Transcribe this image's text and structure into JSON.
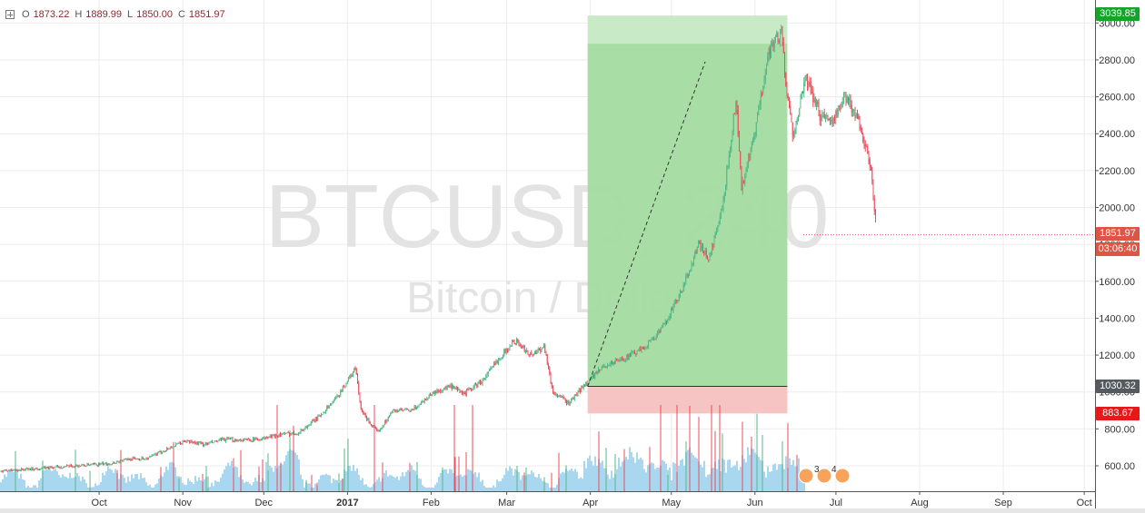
{
  "legend": {
    "o_label": "O",
    "o": "1873.22",
    "h_label": "H",
    "h": "1889.99",
    "l_label": "L",
    "l": "1850.00",
    "c_label": "C",
    "c": "1851.97"
  },
  "watermark": {
    "symbol": "BTCUSD, 240",
    "description": "Bitcoin / Dollar"
  },
  "events": [
    "3",
    "4"
  ],
  "colors": {
    "up": "#53b987",
    "down": "#eb4d5c",
    "profit_zone": "#a3dca0",
    "loss_zone": "#f7c4c4",
    "volume": "#aad7f0"
  },
  "chart_data": {
    "type": "candlestick",
    "symbol": "BTCUSD",
    "interval": "240",
    "y_ticks": [
      "600.00",
      "800.00",
      "1000.00",
      "1200.00",
      "1400.00",
      "1600.00",
      "1800.00",
      "2000.00",
      "2200.00",
      "2400.00",
      "2600.00",
      "2800.00",
      "3000.00"
    ],
    "x_ticks": [
      "Oct",
      "Nov",
      "Dec",
      "2017",
      "Feb",
      "Mar",
      "Apr",
      "May",
      "Jun",
      "Jul",
      "Aug",
      "Sep",
      "Oct"
    ],
    "price_series": [
      [
        "2016-09-28",
        605
      ],
      [
        "2016-10-05",
        612
      ],
      [
        "2016-10-12",
        638
      ],
      [
        "2016-10-19",
        640
      ],
      [
        "2016-10-26",
        690
      ],
      [
        "2016-11-02",
        735
      ],
      [
        "2016-11-09",
        715
      ],
      [
        "2016-11-16",
        742
      ],
      [
        "2016-11-23",
        740
      ],
      [
        "2016-11-30",
        745
      ],
      [
        "2016-12-07",
        770
      ],
      [
        "2016-12-14",
        780
      ],
      [
        "2016-12-21",
        860
      ],
      [
        "2016-12-28",
        970
      ],
      [
        "2017-01-04",
        1130
      ],
      [
        "2017-01-06",
        900
      ],
      [
        "2017-01-12",
        780
      ],
      [
        "2017-01-18",
        900
      ],
      [
        "2017-01-25",
        900
      ],
      [
        "2017-02-01",
        990
      ],
      [
        "2017-02-08",
        1030
      ],
      [
        "2017-02-13",
        990
      ],
      [
        "2017-02-20",
        1060
      ],
      [
        "2017-02-26",
        1180
      ],
      [
        "2017-03-04",
        1280
      ],
      [
        "2017-03-10",
        1200
      ],
      [
        "2017-03-15",
        1250
      ],
      [
        "2017-03-18",
        1000
      ],
      [
        "2017-03-24",
        940
      ],
      [
        "2017-03-30",
        1040
      ],
      [
        "2017-04-06",
        1140
      ],
      [
        "2017-04-13",
        1180
      ],
      [
        "2017-04-20",
        1230
      ],
      [
        "2017-04-27",
        1330
      ],
      [
        "2017-05-05",
        1550
      ],
      [
        "2017-05-11",
        1800
      ],
      [
        "2017-05-15",
        1720
      ],
      [
        "2017-05-20",
        2000
      ],
      [
        "2017-05-25",
        2600
      ],
      [
        "2017-05-27",
        2100
      ],
      [
        "2017-06-01",
        2400
      ],
      [
        "2017-06-06",
        2850
      ],
      [
        "2017-06-11",
        2960
      ],
      [
        "2017-06-12",
        2700
      ],
      [
        "2017-06-15",
        2400
      ],
      [
        "2017-06-20",
        2700
      ],
      [
        "2017-06-25",
        2500
      ],
      [
        "2017-06-30",
        2480
      ],
      [
        "2017-07-05",
        2600
      ],
      [
        "2017-07-10",
        2450
      ],
      [
        "2017-07-14",
        2200
      ],
      [
        "2017-07-16",
        1851.97
      ]
    ],
    "position": {
      "entry_price": 1030.32,
      "target_price": 3039.85,
      "stop_price": 883.67,
      "start_date": "2017-03-31",
      "end_date": "2017-06-13"
    },
    "last_price": "1851.97",
    "countdown": "03:06:40",
    "entry_label": "1030.32",
    "target_label": "3039.85",
    "stop_label": "883.67"
  }
}
